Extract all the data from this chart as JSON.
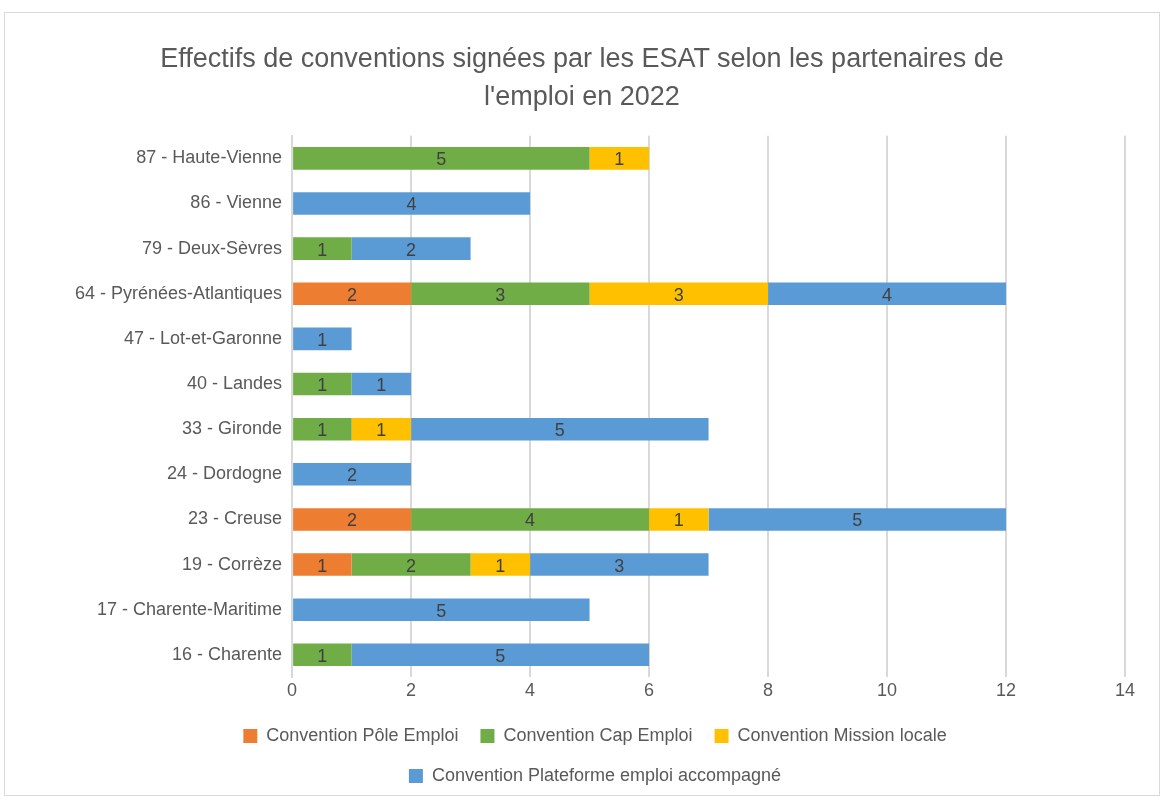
{
  "chart_data": {
    "type": "bar",
    "orientation": "horizontal",
    "stacked": true,
    "title": "Effectifs de conventions signées par les ESAT selon les partenaires de l'emploi en 2022",
    "categories": [
      "87 - Haute-Vienne",
      "86 - Vienne",
      "79 - Deux-Sèvres",
      "64 - Pyrénées-Atlantiques",
      "47 - Lot-et-Garonne",
      "40 - Landes",
      "33 - Gironde",
      "24 - Dordogne",
      "23 - Creuse",
      "19 - Corrèze",
      "17 - Charente-Maritime",
      "16 - Charente"
    ],
    "series": [
      {
        "name": "Convention Pôle Emploi",
        "color": "#ed7d31",
        "values": [
          null,
          null,
          null,
          2,
          null,
          null,
          null,
          null,
          2,
          1,
          null,
          null
        ]
      },
      {
        "name": "Convention Cap Emploi",
        "color": "#70ad47",
        "values": [
          5,
          null,
          1,
          3,
          null,
          1,
          1,
          null,
          4,
          2,
          null,
          1
        ]
      },
      {
        "name": "Convention Mission locale",
        "color": "#ffc000",
        "values": [
          1,
          null,
          null,
          3,
          null,
          null,
          1,
          null,
          1,
          1,
          null,
          null
        ]
      },
      {
        "name": "Convention Plateforme emploi accompagné",
        "color": "#5b9bd5",
        "values": [
          null,
          4,
          2,
          4,
          1,
          1,
          5,
          2,
          5,
          3,
          5,
          5
        ]
      }
    ],
    "xlim": [
      0,
      14
    ],
    "xticks": [
      0,
      2,
      4,
      6,
      8,
      10,
      12,
      14
    ],
    "grid": "x",
    "legend": "bottom",
    "data_labels": true
  }
}
